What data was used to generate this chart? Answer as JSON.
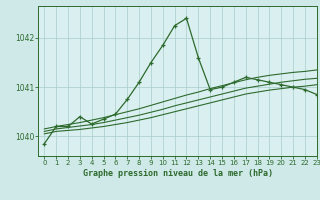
{
  "title": "Graphe pression niveau de la mer (hPa)",
  "background_color": "#cfe9e9",
  "plot_bg_color": "#daf0f0",
  "grid_color": "#a8cccc",
  "line_color": "#2d6a2d",
  "xlim": [
    -0.5,
    23
  ],
  "ylim": [
    1039.6,
    1042.65
  ],
  "yticks": [
    1040,
    1041,
    1042
  ],
  "xticks": [
    0,
    1,
    2,
    3,
    4,
    5,
    6,
    7,
    8,
    9,
    10,
    11,
    12,
    13,
    14,
    15,
    16,
    17,
    18,
    19,
    20,
    21,
    22,
    23
  ],
  "main_line": {
    "x": [
      0,
      1,
      2,
      3,
      4,
      5,
      6,
      7,
      8,
      9,
      10,
      11,
      12,
      13,
      14,
      15,
      16,
      17,
      18,
      19,
      20,
      21,
      22,
      23
    ],
    "y": [
      1039.85,
      1040.2,
      1040.2,
      1040.4,
      1040.25,
      1040.35,
      1040.45,
      1040.75,
      1041.1,
      1041.5,
      1041.85,
      1042.25,
      1042.4,
      1041.6,
      1040.95,
      1041.0,
      1041.1,
      1041.2,
      1041.15,
      1041.1,
      1041.05,
      1041.0,
      1040.95,
      1040.85
    ]
  },
  "trend_lines": [
    {
      "x": [
        0,
        1,
        2,
        3,
        4,
        5,
        6,
        7,
        8,
        9,
        10,
        11,
        12,
        13,
        14,
        15,
        16,
        17,
        18,
        19,
        20,
        21,
        22,
        23
      ],
      "y": [
        1040.05,
        1040.1,
        1040.12,
        1040.14,
        1040.17,
        1040.2,
        1040.24,
        1040.28,
        1040.33,
        1040.38,
        1040.44,
        1040.5,
        1040.56,
        1040.62,
        1040.68,
        1040.74,
        1040.8,
        1040.86,
        1040.9,
        1040.94,
        1040.97,
        1041.0,
        1041.02,
        1041.05
      ]
    },
    {
      "x": [
        0,
        1,
        2,
        3,
        4,
        5,
        6,
        7,
        8,
        9,
        10,
        11,
        12,
        13,
        14,
        15,
        16,
        17,
        18,
        19,
        20,
        21,
        22,
        23
      ],
      "y": [
        1040.1,
        1040.15,
        1040.18,
        1040.21,
        1040.24,
        1040.28,
        1040.33,
        1040.38,
        1040.43,
        1040.49,
        1040.55,
        1040.62,
        1040.68,
        1040.74,
        1040.8,
        1040.86,
        1040.92,
        1040.98,
        1041.02,
        1041.06,
        1041.1,
        1041.13,
        1041.16,
        1041.18
      ]
    },
    {
      "x": [
        0,
        1,
        2,
        3,
        4,
        5,
        6,
        7,
        8,
        9,
        10,
        11,
        12,
        13,
        14,
        15,
        16,
        17,
        18,
        19,
        20,
        21,
        22,
        23
      ],
      "y": [
        1040.15,
        1040.2,
        1040.24,
        1040.28,
        1040.33,
        1040.38,
        1040.44,
        1040.5,
        1040.56,
        1040.63,
        1040.7,
        1040.77,
        1040.84,
        1040.9,
        1040.97,
        1041.03,
        1041.09,
        1041.15,
        1041.2,
        1041.24,
        1041.27,
        1041.3,
        1041.32,
        1041.35
      ]
    }
  ]
}
